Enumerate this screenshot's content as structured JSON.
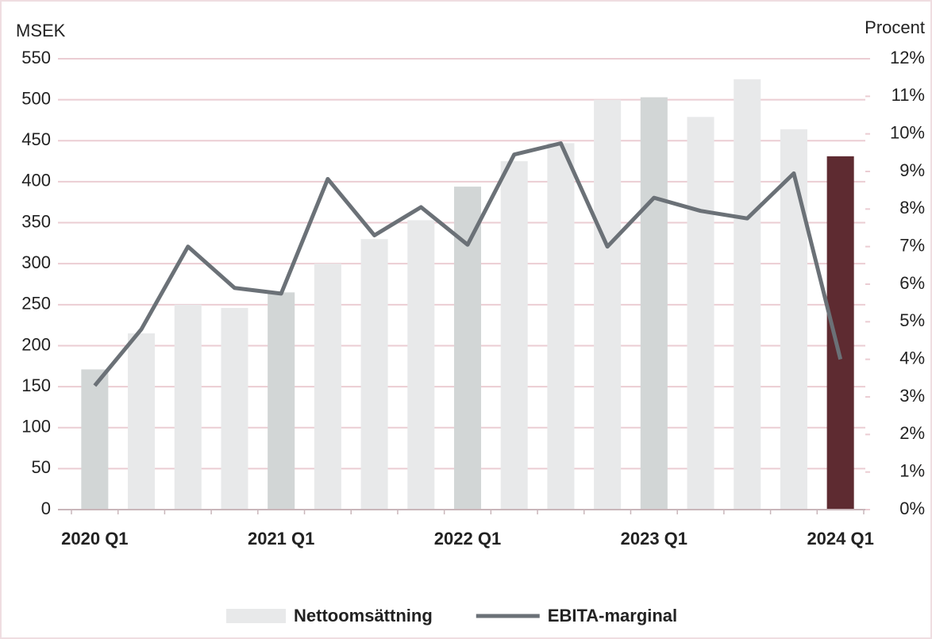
{
  "chart_data": {
    "type": "bar-line",
    "y_label": "MSEK",
    "y2_label": "Procent",
    "categories": [
      "2020 Q1",
      null,
      null,
      null,
      "2021 Q1",
      null,
      null,
      null,
      "2022 Q1",
      null,
      null,
      null,
      "2023 Q1",
      null,
      null,
      null,
      "2024 Q1"
    ],
    "series": [
      {
        "name": "Nettoomsättning",
        "type": "bar",
        "color": "#e8e9ea",
        "colors": [
          "#d2d6d6",
          "#e8e9ea",
          "#e8e9ea",
          "#e8e9ea",
          "#d2d6d6",
          "#e8e9ea",
          "#e8e9ea",
          "#e8e9ea",
          "#d2d6d6",
          "#e8e9ea",
          "#e8e9ea",
          "#e8e9ea",
          "#d2d6d6",
          "#e8e9ea",
          "#e8e9ea",
          "#e8e9ea",
          "#5e2b31"
        ],
        "values": [
          171,
          215,
          250,
          246,
          265,
          300,
          330,
          353,
          394,
          425,
          447,
          500,
          503,
          479,
          525,
          464,
          431
        ]
      },
      {
        "name": "EBITA-marginal",
        "type": "line",
        "axis": "y2",
        "color": "#6b7177",
        "values": [
          3.3,
          4.8,
          7.0,
          5.9,
          5.75,
          8.8,
          7.3,
          8.05,
          7.05,
          9.45,
          9.75,
          7.0,
          8.3,
          7.95,
          7.75,
          8.95,
          4.0
        ]
      }
    ],
    "ylim": [
      0,
      550
    ],
    "yticks": [
      0,
      50,
      100,
      150,
      200,
      250,
      300,
      350,
      400,
      450,
      500,
      550
    ],
    "y2lim": [
      0,
      12
    ],
    "y2ticks": [
      {
        "value": 0,
        "label": "0%"
      },
      {
        "value": 1,
        "label": "1%"
      },
      {
        "value": 2,
        "label": "2%"
      },
      {
        "value": 3,
        "label": "3%"
      },
      {
        "value": 4,
        "label": "4%"
      },
      {
        "value": 5,
        "label": "5%"
      },
      {
        "value": 6,
        "label": "6%"
      },
      {
        "value": 7,
        "label": "7%"
      },
      {
        "value": 8,
        "label": "8%"
      },
      {
        "value": 9,
        "label": "9%"
      },
      {
        "value": 10,
        "label": "10%"
      },
      {
        "value": 11,
        "label": "11%"
      },
      {
        "value": 12,
        "label": "12%"
      }
    ],
    "grid": true,
    "grid_color": "#ebcdd3",
    "legend": "bottom"
  }
}
